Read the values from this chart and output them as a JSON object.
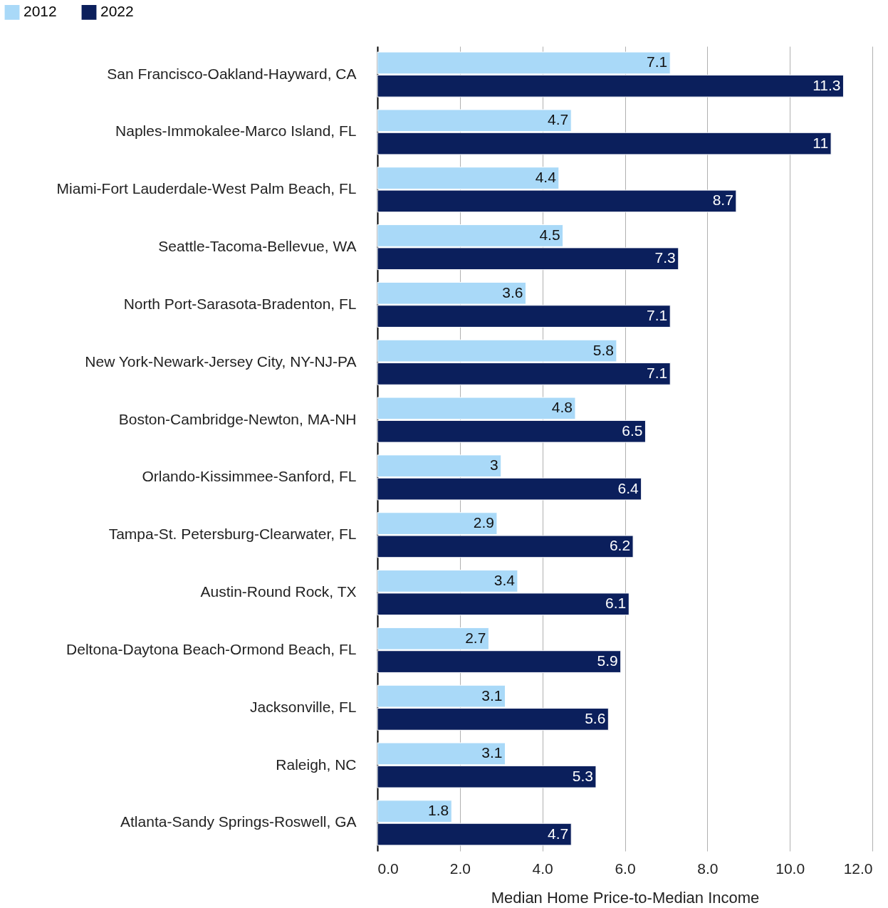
{
  "chart_data": {
    "type": "bar",
    "orientation": "horizontal",
    "xlabel": "Median Home Price-to-Median Income",
    "categories": [
      "San Francisco-Oakland-Hayward, CA",
      "Naples-Immokalee-Marco Island, FL",
      "Miami-Fort Lauderdale-West Palm Beach, FL",
      "Seattle-Tacoma-Bellevue, WA",
      "North Port-Sarasota-Bradenton, FL",
      "New York-Newark-Jersey City, NY-NJ-PA",
      "Boston-Cambridge-Newton, MA-NH",
      "Orlando-Kissimmee-Sanford, FL",
      "Tampa-St. Petersburg-Clearwater, FL",
      "Austin-Round Rock, TX",
      "Deltona-Daytona Beach-Ormond Beach, FL",
      "Jacksonville, FL",
      "Raleigh, NC",
      "Atlanta-Sandy Springs-Roswell, GA"
    ],
    "series": [
      {
        "name": "2012",
        "color": "#a9d9f8",
        "values": [
          7.1,
          4.7,
          4.4,
          4.5,
          3.6,
          5.8,
          4.8,
          3,
          2.9,
          3.4,
          2.7,
          3.1,
          3.1,
          1.8
        ]
      },
      {
        "name": "2022",
        "color": "#0b1f5c",
        "values": [
          11.3,
          11,
          8.7,
          7.3,
          7.1,
          7.1,
          6.5,
          6.4,
          6.2,
          6.1,
          5.9,
          5.6,
          5.3,
          4.7
        ]
      }
    ],
    "xlim": [
      0,
      12
    ],
    "xticks": [
      {
        "value": 0,
        "label": "0.0"
      },
      {
        "value": 2,
        "label": "2.0"
      },
      {
        "value": 4,
        "label": "4.0"
      },
      {
        "value": 6,
        "label": "6.0"
      },
      {
        "value": 8,
        "label": "8.0"
      },
      {
        "value": 10,
        "label": "10.0"
      },
      {
        "value": 12,
        "label": "12.0"
      }
    ],
    "grid": "x",
    "legend": "top left",
    "data_labels": true
  }
}
